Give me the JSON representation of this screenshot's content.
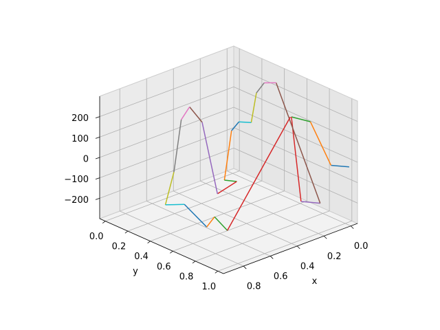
{
  "chart_data": {
    "type": "line3d",
    "x": [
      -0.03,
      0.03,
      0.05,
      0.12,
      0.09,
      0.01,
      0.02,
      0.05,
      0.1,
      0.13,
      0.155,
      0.21,
      0.28,
      0.28,
      0.34,
      0.53,
      0.59,
      0.61,
      0.69,
      0.93,
      0.83,
      0.63,
      0.58,
      0.56,
      0.107
    ],
    "y": [
      1.0,
      0.91,
      0.75,
      0.665,
      0.715,
      0.79,
      0.41,
      0.34,
      0.33,
      0.32,
      0.24,
      0.24,
      0.26,
      0.37,
      0.27,
      0.36,
      0.32,
      0.27,
      0.3,
      0.51,
      0.56,
      0.52,
      0.53,
      0.62,
      0.64
    ],
    "z": [
      -30,
      -30,
      150,
      170,
      -240,
      -250,
      250,
      240,
      200,
      60,
      50,
      20,
      -200,
      -180,
      -250,
      170,
      250,
      180,
      -50,
      -100,
      -110,
      -280,
      -240,
      -290,
      160
    ],
    "colors": [
      "#1f77b4",
      "#ff7f0e",
      "#2ca02c",
      "#d62728",
      "#9467bd",
      "#8c564b",
      "#e377c2",
      "#7f7f7f",
      "#bcbd22",
      "#17becf"
    ],
    "xlabel": "x",
    "ylabel": "y",
    "xlim": [
      -0.05,
      0.95
    ],
    "ylim": [
      -0.05,
      1.05
    ],
    "zlim": [
      -300,
      300
    ],
    "xticks": [
      {
        "value": 0,
        "label": "0.0"
      },
      {
        "value": 0.2,
        "label": "0.2"
      },
      {
        "value": 0.4,
        "label": "0.4"
      },
      {
        "value": 0.6,
        "label": "0.6"
      },
      {
        "value": 0.8,
        "label": "0.8"
      }
    ],
    "yticks": [
      {
        "value": 0,
        "label": "0.0"
      },
      {
        "value": 0.2,
        "label": "0.2"
      },
      {
        "value": 0.4,
        "label": "0.4"
      },
      {
        "value": 0.6,
        "label": "0.6"
      },
      {
        "value": 0.8,
        "label": "0.8"
      },
      {
        "value": 1,
        "label": "1.0"
      }
    ],
    "zticks": [
      {
        "value": -200,
        "label": "−200"
      },
      {
        "value": -100,
        "label": "−100"
      },
      0,
      100,
      200
    ],
    "grid": true
  }
}
